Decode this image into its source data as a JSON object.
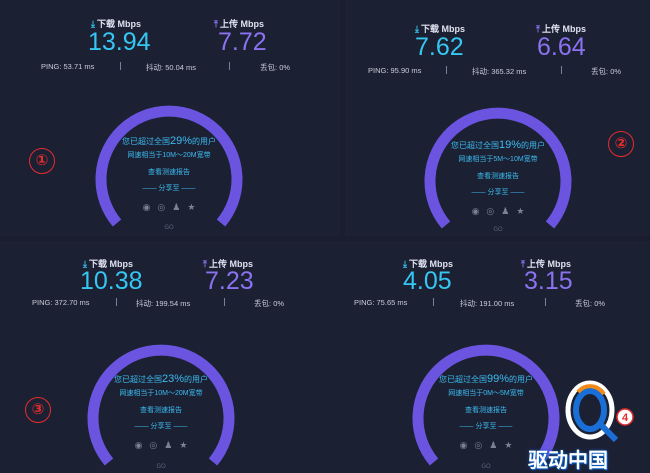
{
  "labels": {
    "download": "下载 Mbps",
    "upload": "上传 Mbps",
    "ping_prefix": "PING:",
    "jitter_prefix": "抖动:",
    "loss_prefix": "丢包:",
    "exceed_pre": "您已超过全国",
    "exceed_post": "的用户",
    "report": "查看测速报告",
    "share": "—— 分享至 ——"
  },
  "icons": [
    "wechat-icon",
    "weibo-icon",
    "qq-icon",
    "favorite-icon"
  ],
  "colors": {
    "download": "#35c6f2",
    "upload": "#8a72f0",
    "gauge": "#6b55e0",
    "marker": "#e22d2d"
  },
  "panels": [
    {
      "download": "13.94",
      "upload": "7.72",
      "ping": "53.71 ms",
      "jitter": "50.04 ms",
      "loss": "0%",
      "percent": "29%",
      "equiv": "网速相当于10M～20M宽带",
      "marker": "①"
    },
    {
      "download": "7.62",
      "upload": "6.64",
      "ping": "95.90 ms",
      "jitter": "365.32 ms",
      "loss": "0%",
      "percent": "19%",
      "equiv": "网速相当于5M～10M宽带",
      "marker": "②"
    },
    {
      "download": "10.38",
      "upload": "7.23",
      "ping": "372.70 ms",
      "jitter": "199.54 ms",
      "loss": "0%",
      "percent": "23%",
      "equiv": "网速相当于10M～20M宽带",
      "marker": "③"
    },
    {
      "download": "4.05",
      "upload": "3.15",
      "ping": "75.65 ms",
      "jitter": "191.00 ms",
      "loss": "0%",
      "percent": "99%",
      "equiv": "网速相当于0M～5M宽带",
      "marker": ""
    }
  ],
  "watermark": {
    "text": "驱动中国",
    "logo_letter": "Q",
    "logo_badge": "4"
  }
}
